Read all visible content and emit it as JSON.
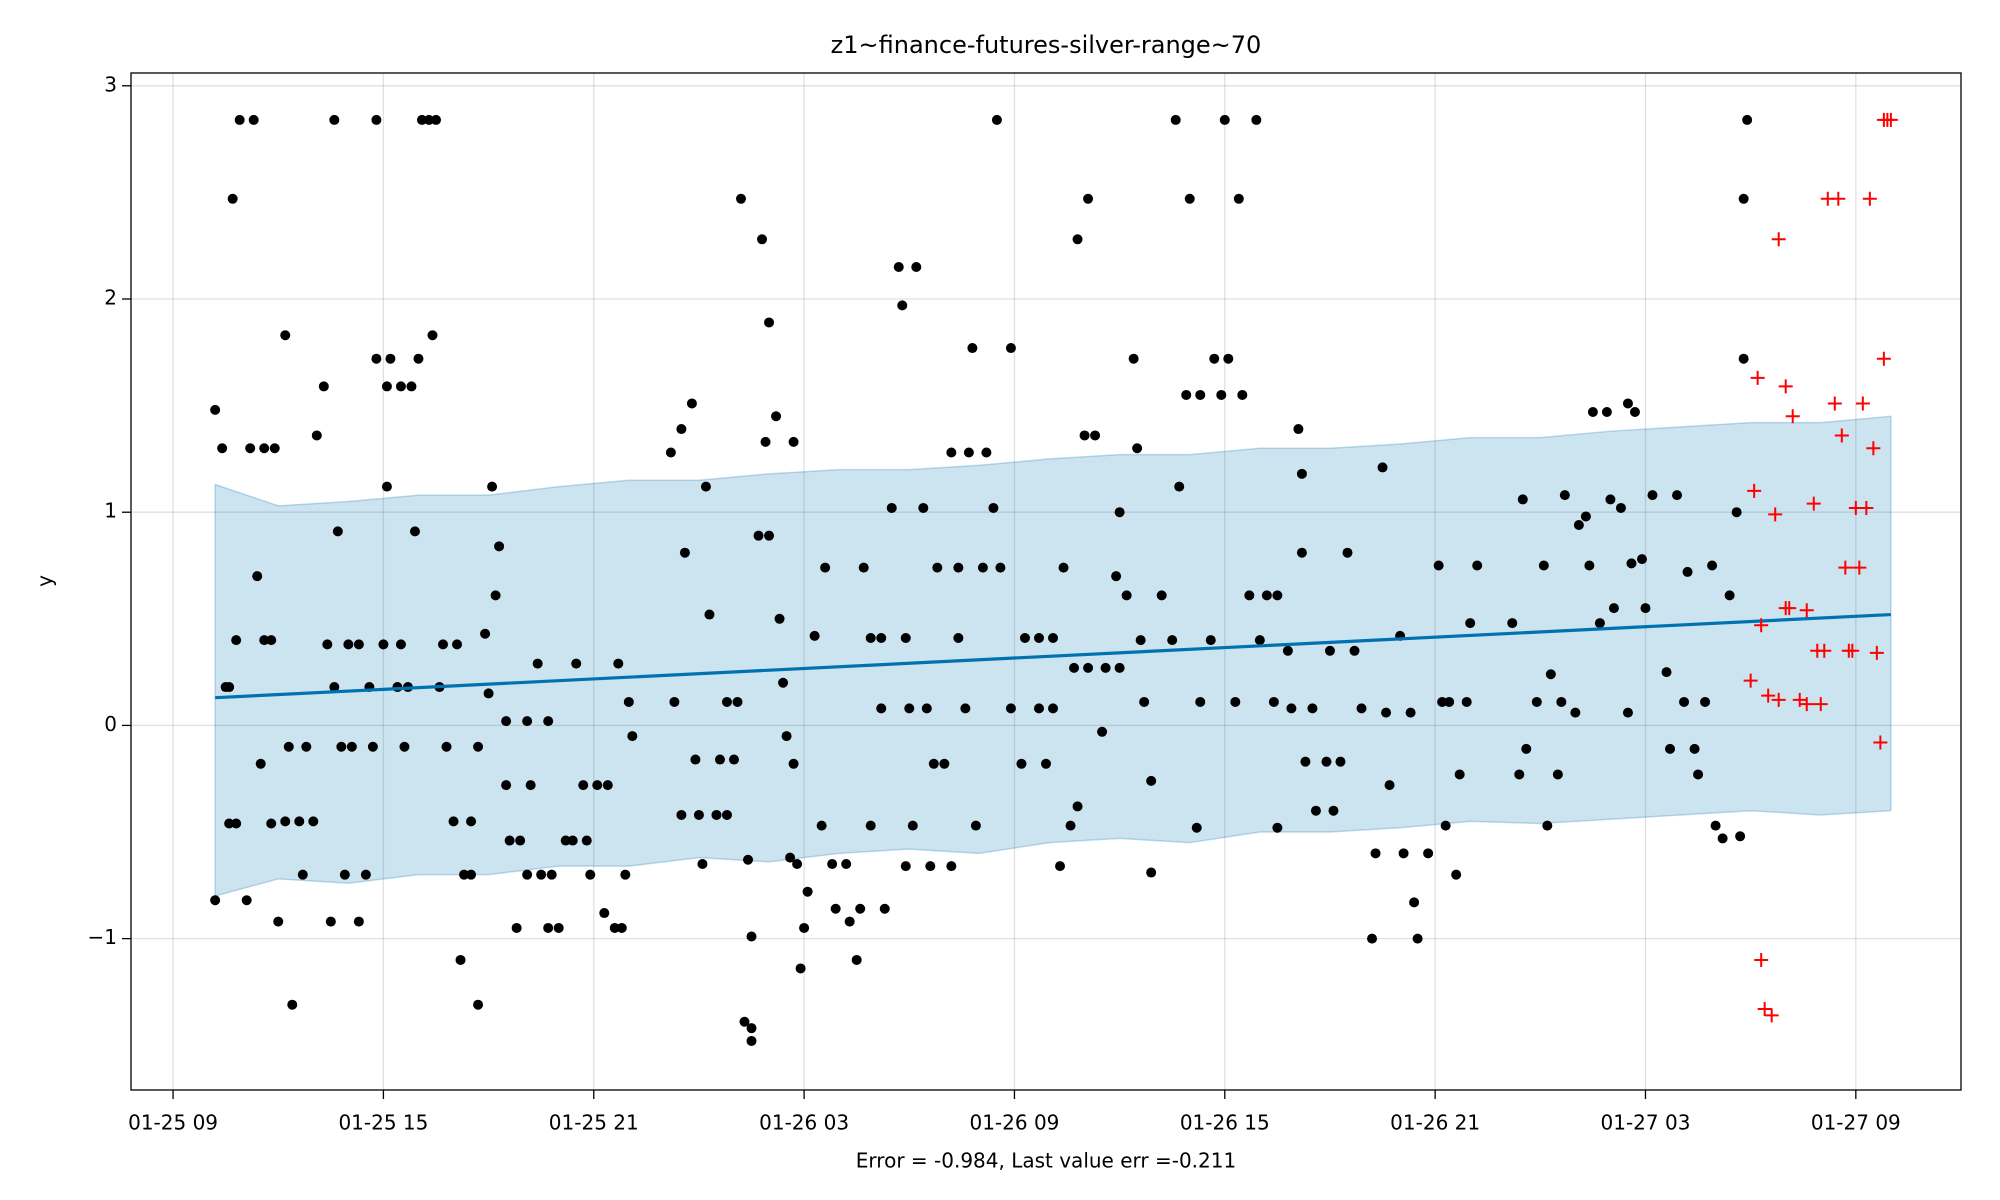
{
  "chart_data": {
    "type": "scatter",
    "title": "z1~finance-futures-silver-range~70",
    "ylabel": "y",
    "xlabel": "Error = -0.984, Last value err =-0.211",
    "xlim": [
      7.8,
      60
    ],
    "ylim": [
      -1.71,
      3.06
    ],
    "xticks": [
      {
        "value": 9,
        "label": "01-25 09"
      },
      {
        "value": 15,
        "label": "01-25 15"
      },
      {
        "value": 21,
        "label": "01-25 21"
      },
      {
        "value": 27,
        "label": "01-26 03"
      },
      {
        "value": 33,
        "label": "01-26 09"
      },
      {
        "value": 39,
        "label": "01-26 15"
      },
      {
        "value": 45,
        "label": "01-26 21"
      },
      {
        "value": 51,
        "label": "01-27 03"
      },
      {
        "value": 57,
        "label": "01-27 09"
      }
    ],
    "yticks": [
      {
        "value": -1,
        "label": "−1"
      },
      0,
      1,
      2,
      3
    ],
    "grid": true,
    "series": [
      {
        "kind": "area",
        "color": "#0072b2",
        "opacity": 0.2,
        "x": [
          10.2,
          12,
          14,
          16,
          18,
          20,
          22,
          24,
          26,
          28,
          30,
          32,
          34,
          36,
          38,
          40,
          42,
          44,
          46,
          48,
          50,
          52,
          54,
          56,
          58
        ],
        "values": [
          1.13,
          1.03,
          1.05,
          1.08,
          1.08,
          1.12,
          1.15,
          1.15,
          1.18,
          1.2,
          1.2,
          1.22,
          1.25,
          1.27,
          1.27,
          1.3,
          1.3,
          1.32,
          1.35,
          1.35,
          1.38,
          1.4,
          1.42,
          1.42,
          1.45
        ],
        "lower": [
          -0.8,
          -0.72,
          -0.74,
          -0.7,
          -0.7,
          -0.66,
          -0.66,
          -0.62,
          -0.64,
          -0.6,
          -0.58,
          -0.6,
          -0.55,
          -0.53,
          -0.55,
          -0.5,
          -0.5,
          -0.48,
          -0.45,
          -0.46,
          -0.44,
          -0.42,
          -0.4,
          -0.42,
          -0.4
        ]
      },
      {
        "kind": "points",
        "marker": "o",
        "color": "#000000",
        "x": [
          10.2,
          10.4,
          10.5,
          10.6,
          10.6,
          10.8,
          10.2,
          10.8,
          10.7,
          10.9,
          11.3,
          11.2,
          11.6,
          11.4,
          11.1,
          11.5,
          11.6,
          11.8,
          11.9,
          11.8,
          12.0,
          12.2,
          12.3,
          12.4,
          12.2,
          12.6,
          12.7,
          12.8,
          13.0,
          13.1,
          13.3,
          13.4,
          13.5,
          13.6,
          13.6,
          13.7,
          13.8,
          13.9,
          14.0,
          14.1,
          14.3,
          14.3,
          14.5,
          14.6,
          14.7,
          14.8,
          14.8,
          15.0,
          15.1,
          15.1,
          15.2,
          15.4,
          15.5,
          15.5,
          15.6,
          15.7,
          15.8,
          15.9,
          16.0,
          16.1,
          16.3,
          16.4,
          16.5,
          16.6,
          16.7,
          16.8,
          17.0,
          17.1,
          17.2,
          17.3,
          17.5,
          17.5,
          17.7,
          17.7,
          17.9,
          18.0,
          18.1,
          18.2,
          18.3,
          18.5,
          18.5,
          18.6,
          18.8,
          18.9,
          19.1,
          19.1,
          19.2,
          19.4,
          19.5,
          19.7,
          19.7,
          19.8,
          20.0,
          20.2,
          20.4,
          20.5,
          20.7,
          20.8,
          20.9,
          21.1,
          21.3,
          21.4,
          21.6,
          21.7,
          21.8,
          21.9,
          22.0,
          22.1,
          23.2,
          23.3,
          23.5,
          23.5,
          23.6,
          23.8,
          23.9,
          24.0,
          24.1,
          24.2,
          24.3,
          24.5,
          24.6,
          24.8,
          25.0,
          24.8,
          25.1,
          25.2,
          25.3,
          25.4,
          25.5,
          25.5,
          25.5,
          25.8,
          25.9,
          26.0,
          25.7,
          26.0,
          26.2,
          26.3,
          26.4,
          26.5,
          26.7,
          26.7,
          26.6,
          26.8,
          26.9,
          27.0,
          27.1,
          27.3,
          27.5,
          27.6,
          27.8,
          27.9,
          28.2,
          28.3,
          28.5,
          28.7,
          28.9,
          28.6,
          28.9,
          29.2,
          29.2,
          29.3,
          29.5,
          29.7,
          29.8,
          29.9,
          29.9,
          30.0,
          30.1,
          30.2,
          30.4,
          30.5,
          30.6,
          30.7,
          30.8,
          31.0,
          31.2,
          31.2,
          31.4,
          31.4,
          31.6,
          31.7,
          31.8,
          31.9,
          32.1,
          32.2,
          32.4,
          32.5,
          32.6,
          32.9,
          32.9,
          33.2,
          33.3,
          33.7,
          33.7,
          33.9,
          34.1,
          34.1,
          34.3,
          34.4,
          34.6,
          34.7,
          34.8,
          34.8,
          35.0,
          35.1,
          35.1,
          35.3,
          35.5,
          35.6,
          35.9,
          36.0,
          36.0,
          36.2,
          36.4,
          36.5,
          36.6,
          36.7,
          36.9,
          36.9,
          37.2,
          37.5,
          37.6,
          37.7,
          37.9,
          38.0,
          38.2,
          38.3,
          38.3,
          38.6,
          38.7,
          38.9,
          39.0,
          39.1,
          39.3,
          39.4,
          39.5,
          39.7,
          39.9,
          40.0,
          40.2,
          40.4,
          40.5,
          40.5,
          40.8,
          40.9,
          41.1,
          41.2,
          41.2,
          41.3,
          41.5,
          41.6,
          41.9,
          42.0,
          42.1,
          42.3,
          42.5,
          42.7,
          42.9,
          43.2,
          43.3,
          43.5,
          43.6,
          43.7,
          44.0,
          44.1,
          44.3,
          44.4,
          44.5,
          44.8,
          45.1,
          45.2,
          45.3,
          45.4,
          45.6,
          45.7,
          45.9,
          46.0,
          46.2,
          47.2,
          47.4,
          47.5,
          47.6,
          47.9,
          48.1,
          48.2,
          48.3,
          48.5,
          48.6,
          48.7,
          49.0,
          49.1,
          49.3,
          49.4,
          49.5,
          49.7,
          49.9,
          50.0,
          50.1,
          50.3,
          50.5,
          50.5,
          50.6,
          50.7,
          50.9,
          51.0,
          51.2,
          51.6,
          51.7,
          51.9,
          52.1,
          52.2,
          52.4,
          52.5,
          52.7,
          52.9,
          53.0,
          53.2,
          53.4,
          53.6,
          53.7,
          53.8,
          53.8,
          53.9
        ],
        "values": [
          1.48,
          1.3,
          0.18,
          0.18,
          -0.46,
          -0.46,
          -0.82,
          0.4,
          2.47,
          2.84,
          2.84,
          1.3,
          1.3,
          0.7,
          -0.82,
          -0.18,
          0.4,
          0.4,
          1.3,
          -0.46,
          -0.92,
          1.83,
          -0.1,
          -1.31,
          -0.45,
          -0.45,
          -0.7,
          -0.1,
          -0.45,
          1.36,
          1.59,
          0.38,
          -0.92,
          2.84,
          0.18,
          0.91,
          -0.1,
          -0.7,
          0.38,
          -0.1,
          0.38,
          -0.92,
          -0.7,
          0.18,
          -0.1,
          2.84,
          1.72,
          0.38,
          1.59,
          1.12,
          1.72,
          0.18,
          0.38,
          1.59,
          -0.1,
          0.18,
          1.59,
          0.91,
          1.72,
          2.84,
          2.84,
          1.83,
          2.84,
          0.18,
          0.38,
          -0.1,
          -0.45,
          0.38,
          -1.1,
          -0.7,
          -0.45,
          -0.7,
          -0.1,
          -1.31,
          0.43,
          0.15,
          1.12,
          0.61,
          0.84,
          -0.28,
          0.02,
          -0.54,
          -0.95,
          -0.54,
          -0.7,
          0.02,
          -0.28,
          0.29,
          -0.7,
          0.02,
          -0.95,
          -0.7,
          -0.95,
          -0.54,
          -0.54,
          0.29,
          -0.28,
          -0.54,
          -0.7,
          -0.28,
          -0.88,
          -0.28,
          -0.95,
          0.29,
          -0.95,
          -0.7,
          0.11,
          -0.05,
          1.28,
          0.11,
          1.39,
          -0.42,
          0.81,
          1.51,
          -0.16,
          -0.42,
          -0.65,
          1.12,
          0.52,
          -0.42,
          -0.16,
          -0.42,
          -0.16,
          0.11,
          0.11,
          2.47,
          -1.39,
          -0.63,
          -0.99,
          -1.48,
          -1.42,
          2.28,
          1.33,
          1.89,
          0.89,
          0.89,
          1.45,
          0.5,
          0.2,
          -0.05,
          1.33,
          -0.18,
          -0.62,
          -0.65,
          -1.14,
          -0.95,
          -0.78,
          0.42,
          -0.47,
          0.74,
          -0.65,
          -0.86,
          -0.65,
          -0.92,
          -1.1,
          0.74,
          0.41,
          -0.86,
          -0.47,
          0.41,
          0.08,
          -0.86,
          1.02,
          2.15,
          1.97,
          -0.66,
          0.41,
          0.08,
          -0.47,
          2.15,
          1.02,
          0.08,
          -0.66,
          -0.18,
          0.74,
          -0.18,
          -0.66,
          1.28,
          0.74,
          0.41,
          0.08,
          1.28,
          1.77,
          -0.47,
          0.74,
          1.28,
          1.02,
          2.84,
          0.74,
          0.08,
          1.77,
          -0.18,
          0.41,
          0.41,
          0.08,
          -0.18,
          0.08,
          0.41,
          -0.66,
          0.74,
          -0.47,
          0.27,
          2.28,
          -0.38,
          1.36,
          2.47,
          0.27,
          1.36,
          -0.03,
          0.27,
          0.7,
          0.27,
          1.0,
          0.61,
          1.72,
          1.3,
          0.4,
          0.11,
          -0.26,
          -0.69,
          0.61,
          0.4,
          2.84,
          1.12,
          1.55,
          2.47,
          -0.48,
          0.11,
          1.55,
          0.4,
          1.72,
          1.55,
          2.84,
          1.72,
          0.11,
          2.47,
          1.55,
          0.61,
          2.84,
          0.4,
          0.61,
          0.11,
          0.61,
          -0.48,
          0.35,
          0.08,
          1.39,
          0.81,
          1.18,
          -0.17,
          0.08,
          -0.4,
          -0.17,
          0.35,
          -0.4,
          -0.17,
          0.81,
          0.35,
          0.08,
          -1.0,
          -0.6,
          1.21,
          0.06,
          -0.28,
          0.42,
          -0.6,
          0.06,
          -0.83,
          -1.0,
          -0.6,
          0.75,
          0.11,
          -0.47,
          0.11,
          -0.7,
          -0.23,
          0.11,
          0.48,
          0.75,
          0.48,
          -0.23,
          1.06,
          -0.11,
          0.11,
          0.75,
          -0.47,
          0.24,
          -0.23,
          0.11,
          1.08,
          0.06,
          0.94,
          0.98,
          0.75,
          1.47,
          0.48,
          1.47,
          1.06,
          0.55,
          1.02,
          1.51,
          0.06,
          0.76,
          1.47,
          0.78,
          0.55,
          1.08,
          0.25,
          -0.11,
          1.08,
          0.11,
          0.72,
          -0.11,
          -0.23,
          0.11,
          0.75,
          -0.47,
          -0.53,
          0.61,
          1.0,
          -0.52,
          2.47,
          1.72,
          2.84
        ]
      },
      {
        "kind": "line",
        "color": "#0072b2",
        "x": [
          10.2,
          58.0
        ],
        "values": [
          0.13,
          0.52
        ]
      },
      {
        "kind": "points",
        "marker": "+",
        "color": "#ff0000",
        "x": [
          54.2,
          54.1,
          54.3,
          54.0,
          54.5,
          54.3,
          54.4,
          54.6,
          54.7,
          54.8,
          54.8,
          55.0,
          55.0,
          55.1,
          55.2,
          55.4,
          55.6,
          55.6,
          55.8,
          55.9,
          56.0,
          56.1,
          56.2,
          56.4,
          56.5,
          56.6,
          56.7,
          56.8,
          56.9,
          57.0,
          57.1,
          57.2,
          57.3,
          57.4,
          57.5,
          57.6,
          57.7,
          57.8,
          57.8,
          57.9,
          58.0
        ],
        "values": [
          1.63,
          1.1,
          0.47,
          0.21,
          0.14,
          -1.1,
          -1.33,
          -1.36,
          0.99,
          2.28,
          0.12,
          1.59,
          0.55,
          0.55,
          1.45,
          0.12,
          0.54,
          0.1,
          1.04,
          0.35,
          0.1,
          0.35,
          2.47,
          1.51,
          2.47,
          1.36,
          0.74,
          0.35,
          0.35,
          1.02,
          0.74,
          1.51,
          1.02,
          2.47,
          1.3,
          0.34,
          -0.08,
          2.84,
          1.72,
          2.84,
          2.84
        ]
      }
    ]
  }
}
